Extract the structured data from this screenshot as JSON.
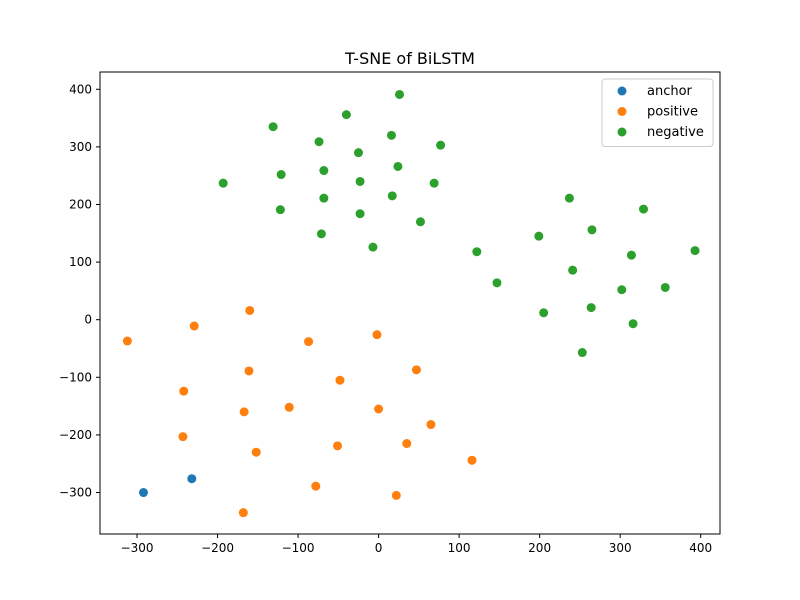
{
  "chart_data": {
    "type": "scatter",
    "title": "T-SNE of BiLSTM",
    "xlabel": "",
    "ylabel": "",
    "xlim": [
      -346,
      424
    ],
    "ylim": [
      -372,
      430
    ],
    "xticks": [
      -300,
      -200,
      -100,
      0,
      100,
      200,
      300,
      400
    ],
    "yticks": [
      -300,
      -200,
      -100,
      0,
      100,
      200,
      300,
      400
    ],
    "grid": false,
    "legend_position": "top-right",
    "series": [
      {
        "name": "anchor",
        "color": "#1f77b4",
        "points": [
          [
            -292,
            -300
          ],
          [
            -232,
            -276
          ]
        ]
      },
      {
        "name": "positive",
        "color": "#ff7f0e",
        "points": [
          [
            -312,
            -37
          ],
          [
            -229,
            -11
          ],
          [
            -160,
            16
          ],
          [
            -87,
            -38
          ],
          [
            -2,
            -26
          ],
          [
            -161,
            -89
          ],
          [
            -242,
            -124
          ],
          [
            -48,
            -105
          ],
          [
            47,
            -87
          ],
          [
            -167,
            -160
          ],
          [
            -111,
            -152
          ],
          [
            0,
            -155
          ],
          [
            -243,
            -203
          ],
          [
            -152,
            -230
          ],
          [
            -51,
            -219
          ],
          [
            35,
            -215
          ],
          [
            65,
            -182
          ],
          [
            116,
            -244
          ],
          [
            -78,
            -289
          ],
          [
            22,
            -305
          ],
          [
            -168,
            -335
          ]
        ]
      },
      {
        "name": "negative",
        "color": "#2ca02c",
        "points": [
          [
            26,
            391
          ],
          [
            -40,
            356
          ],
          [
            -131,
            335
          ],
          [
            -74,
            309
          ],
          [
            16,
            320
          ],
          [
            77,
            303
          ],
          [
            -25,
            290
          ],
          [
            24,
            266
          ],
          [
            -121,
            252
          ],
          [
            -68,
            259
          ],
          [
            -193,
            237
          ],
          [
            -23,
            240
          ],
          [
            69,
            237
          ],
          [
            17,
            215
          ],
          [
            -68,
            211
          ],
          [
            -122,
            191
          ],
          [
            -23,
            184
          ],
          [
            52,
            170
          ],
          [
            -71,
            149
          ],
          [
            -7,
            126
          ],
          [
            122,
            118
          ],
          [
            147,
            64
          ],
          [
            199,
            145
          ],
          [
            237,
            211
          ],
          [
            265,
            156
          ],
          [
            329,
            192
          ],
          [
            241,
            86
          ],
          [
            314,
            112
          ],
          [
            393,
            120
          ],
          [
            205,
            12
          ],
          [
            264,
            21
          ],
          [
            302,
            52
          ],
          [
            356,
            56
          ],
          [
            316,
            -7
          ],
          [
            253,
            -57
          ]
        ]
      }
    ]
  }
}
